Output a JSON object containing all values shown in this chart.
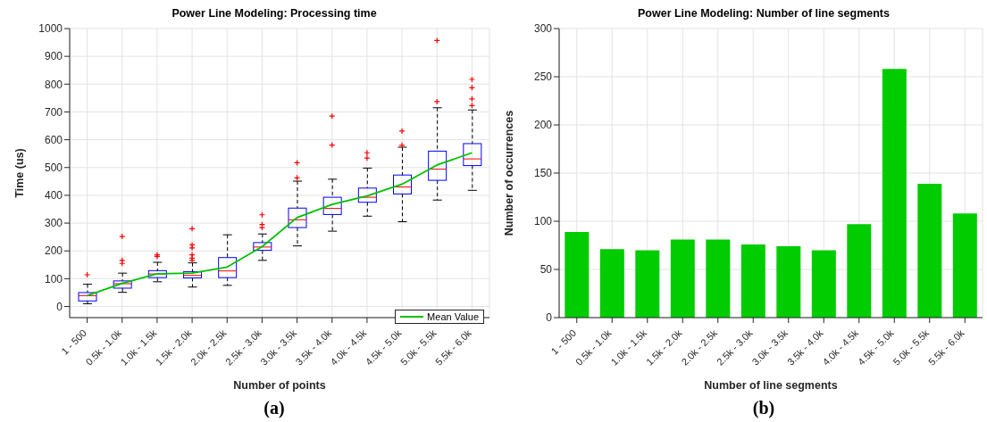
{
  "chart_data": [
    {
      "type": "box",
      "title": "Power Line Modeling: Processing time",
      "xlabel": "Number of points",
      "ylabel": "Time (us)",
      "annotations": [
        "(a)"
      ],
      "categories": [
        "1 - 500",
        "0.5k - 1.0k",
        "1.0k - 1.5k",
        "1.5k - 2.0k",
        "2.0k - 2.5k",
        "2.5k - 3.0k",
        "3.0k - 3.5k",
        "3.5k - 4.0k",
        "4.0k - 4.5k",
        "4.5k - 5.0k",
        "5.0k - 5.5k",
        "5.5k - 6.0k"
      ],
      "ylim": [
        -40,
        1000
      ],
      "yticks": [
        0,
        100,
        200,
        300,
        400,
        500,
        600,
        700,
        800,
        900,
        1000
      ],
      "grid": true,
      "legend": "bottom right",
      "series": [
        {
          "type": "box",
          "color": "#0000ff",
          "boxes": [
            {
              "low": 10,
              "q1": 20,
              "median": 39,
              "q3": 50,
              "high": 80,
              "outliers": [
                114
              ]
            },
            {
              "low": 51,
              "q1": 66,
              "median": 82,
              "q3": 92,
              "high": 120,
              "outliers": [
                252,
                166,
                155
              ]
            },
            {
              "low": 89,
              "q1": 104,
              "median": 117,
              "q3": 129,
              "high": 159,
              "outliers": [
                186,
                180
              ]
            },
            {
              "low": 70,
              "q1": 103,
              "median": 112,
              "q3": 125,
              "high": 157,
              "outliers": [
                280,
                222,
                211,
                186,
                174,
                166
              ]
            },
            {
              "low": 76,
              "q1": 104,
              "median": 128,
              "q3": 176,
              "high": 258
            },
            {
              "low": 166,
              "q1": 202,
              "median": 214,
              "q3": 230,
              "high": 261,
              "outliers": [
                330,
                295,
                284
              ]
            },
            {
              "low": 218,
              "q1": 284,
              "median": 312,
              "q3": 354,
              "high": 451,
              "outliers": [
                517,
                463
              ]
            },
            {
              "low": 271,
              "q1": 331,
              "median": 353,
              "q3": 393,
              "high": 458,
              "outliers": [
                685,
                581
              ]
            },
            {
              "low": 325,
              "q1": 375,
              "median": 393,
              "q3": 426,
              "high": 498,
              "outliers": [
                553,
                534
              ]
            },
            {
              "low": 305,
              "q1": 405,
              "median": 430,
              "q3": 473,
              "high": 573,
              "outliers": [
                631,
                580
              ]
            },
            {
              "low": 383,
              "q1": 454,
              "median": 494,
              "q3": 559,
              "high": 715,
              "outliers": [
                957,
                737
              ]
            },
            {
              "low": 418,
              "q1": 507,
              "median": 531,
              "q3": 586,
              "high": 707,
              "outliers": [
                817,
                787,
                747,
                723
              ]
            }
          ]
        },
        {
          "type": "line",
          "name": "Mean Value",
          "color": "#00c000",
          "marker": "none",
          "values": [
            39,
            83,
            118,
            120,
            142,
            215,
            320,
            367,
            398,
            440,
            509,
            553
          ]
        }
      ]
    },
    {
      "type": "bar",
      "title": "Power Line Modeling: Number of line segments",
      "xlabel": "Number of line segments",
      "ylabel": "Number of occurrences",
      "annotations": [
        "(b)"
      ],
      "categories": [
        "1 - 500",
        "0.5k - 1.0k",
        "1.0k - 1.5k",
        "1.5k - 2.0k",
        "2.0k - 2.5k",
        "2.5k - 3.0k",
        "3.0k - 3.5k",
        "3.5k - 4.0k",
        "4.0k - 4.5k",
        "4.5k - 5.0k",
        "5.0k - 5.5k",
        "5.5k - 6.0k"
      ],
      "values": [
        89,
        71,
        70,
        81,
        81,
        76,
        74,
        70,
        97,
        258,
        139,
        108
      ],
      "color": "#00cc00",
      "ylim": [
        0,
        300
      ],
      "yticks": [
        0,
        50,
        100,
        150,
        200,
        250,
        300
      ],
      "grid": true
    }
  ]
}
